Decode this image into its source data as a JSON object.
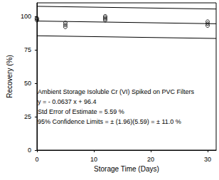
{
  "chart_data": {
    "type": "scatter",
    "x_label": "Storage Time (Days)",
    "y_label": "Recovery (%)",
    "annotations": [
      "Ambient Storage Isoluble Cr (VI) Spiked on PVC Filters",
      "y = - 0.0637 x + 96.4",
      "Std Error of Estimate = 5.59 %",
      "95% Confidence Limits = ± (1.96)(5.59) = ± 11.0 %"
    ],
    "xlim": [
      0,
      31.5
    ],
    "xticks": [
      0,
      10,
      20,
      30
    ],
    "ylim": [
      0,
      110
    ],
    "yticks": [
      0,
      25,
      50,
      75,
      100
    ],
    "grid": false,
    "series": [
      {
        "type": "scatter",
        "marker": "circle",
        "color": "#000000",
        "x": [
          0,
          0,
          0,
          5,
          5,
          5,
          12,
          12,
          12,
          12,
          30,
          30,
          30
        ],
        "values": [
          97,
          98,
          98.5,
          92,
          93.5,
          95,
          97,
          98,
          99,
          100,
          93,
          94.5,
          96
        ]
      },
      {
        "type": "line",
        "line_style": "solid",
        "color": "#000000",
        "x": [
          0,
          31.5
        ],
        "values": [
          107.4,
          105.39
        ]
      },
      {
        "type": "line",
        "line_style": "solid",
        "color": "#000000",
        "x": [
          0,
          31.5
        ],
        "values": [
          96.4,
          94.39
        ]
      },
      {
        "type": "line",
        "line_style": "solid",
        "color": "#000000",
        "x": [
          0,
          31.5
        ],
        "values": [
          85.4,
          83.39
        ]
      }
    ]
  }
}
